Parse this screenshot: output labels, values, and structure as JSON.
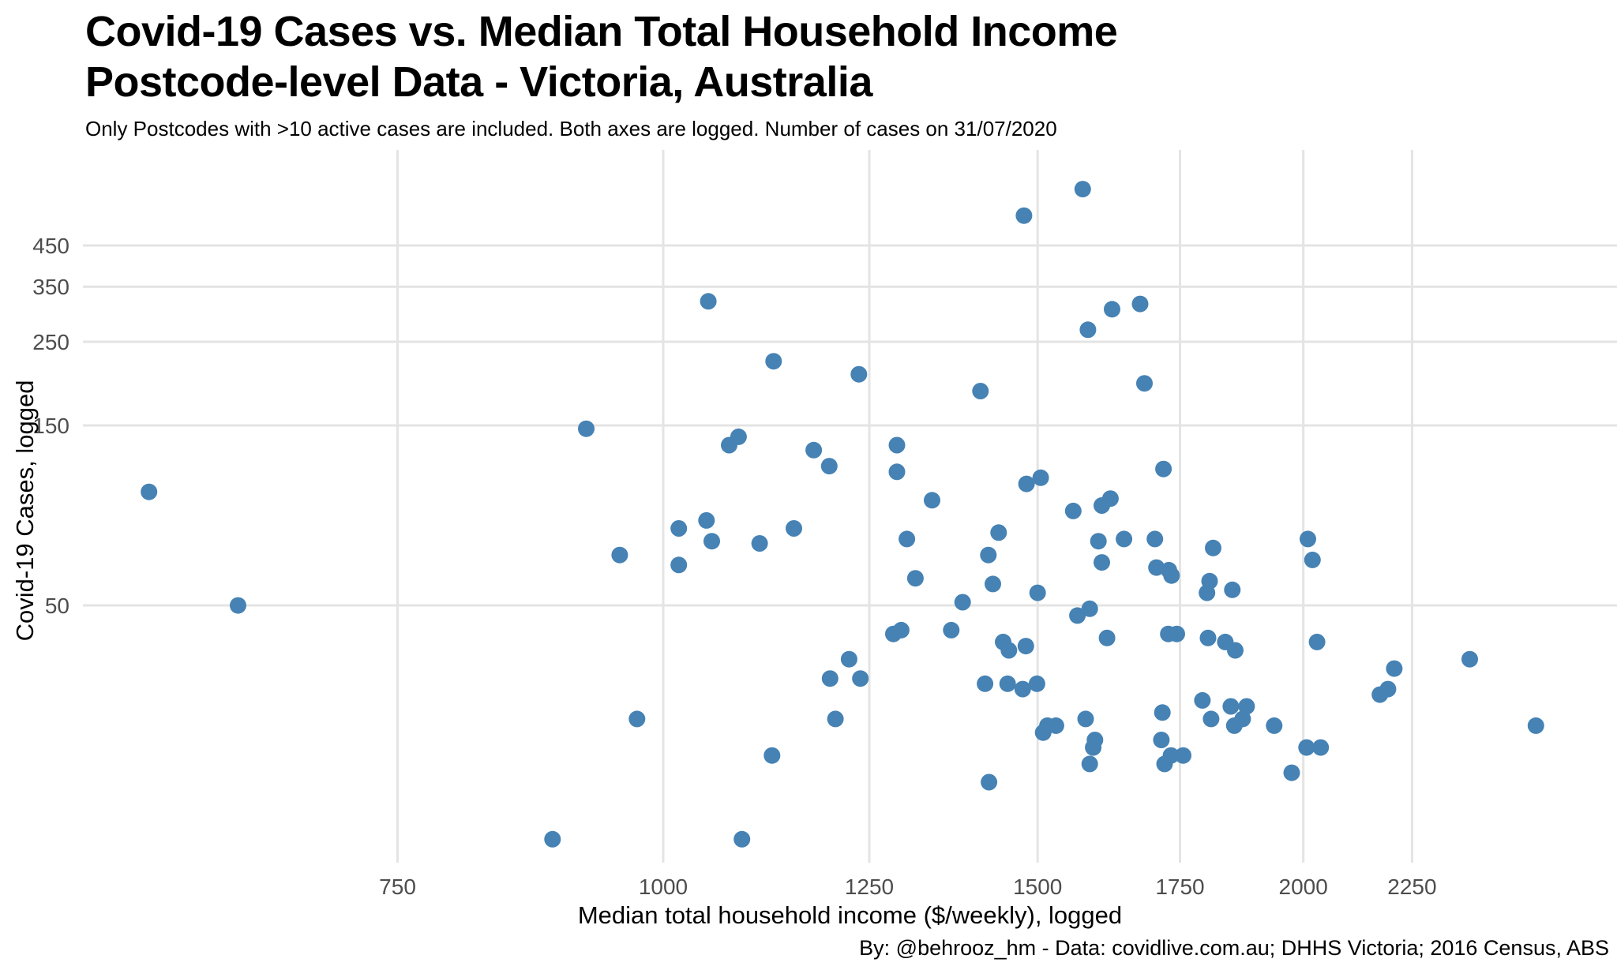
{
  "header": {
    "title": "Covid-19 Cases vs. Median Total Household Income\nPostcode-level Data - Victoria, Australia",
    "subtitle": "Only Postcodes with >10 active cases are included. Both axes are logged. Number of cases on 31/07/2020"
  },
  "chart_data": {
    "type": "scatter",
    "title": "Covid-19 Cases vs. Median Total Household Income Postcode-level Data - Victoria, Australia",
    "subtitle": "Only Postcodes with >10 active cases are included. Both axes are logged. Number of cases on 31/07/2020",
    "xlabel": "Median total household income ($/weekly), logged",
    "ylabel": "Covid-19 Cases, logged",
    "caption": "By: @behrooz_hm - Data: covidlive.com.au; DHHS Victoria; 2016 Census, ABS",
    "x_scale": "log",
    "y_scale": "log",
    "x_ticks": [
      750,
      1000,
      1250,
      1500,
      1750,
      2000,
      2250
    ],
    "y_ticks": [
      50,
      150,
      250,
      350,
      450
    ],
    "xlim": [
      533,
      2810
    ],
    "ylim": [
      10.4,
      806
    ],
    "grid": true,
    "legend": false,
    "point_color": "#4682B4",
    "grid_color": "#e4e4e4",
    "tick_label_color": "#4d4d4d",
    "points": [
      [
        573,
        100
      ],
      [
        631,
        50
      ],
      [
        1050,
        320
      ],
      [
        1127,
        222
      ],
      [
        1236,
        205
      ],
      [
        920,
        147
      ],
      [
        1085,
        140
      ],
      [
        1074,
        133
      ],
      [
        1177,
        129
      ],
      [
        1197,
        117
      ],
      [
        1288,
        133
      ],
      [
        1288,
        113
      ],
      [
        1575,
        635
      ],
      [
        1478,
        540
      ],
      [
        1626,
        305
      ],
      [
        1676,
        315
      ],
      [
        1584,
        269
      ],
      [
        1684,
        194
      ],
      [
        1410,
        185
      ],
      [
        1719,
        115
      ],
      [
        1505,
        109
      ],
      [
        1482,
        105
      ],
      [
        1338,
        95
      ],
      [
        1623,
        96
      ],
      [
        1608,
        92
      ],
      [
        1559,
        89
      ],
      [
        954,
        68
      ],
      [
        1017,
        80
      ],
      [
        1048,
        84
      ],
      [
        1054,
        74
      ],
      [
        1110,
        73
      ],
      [
        1152,
        80
      ],
      [
        1017,
        64
      ],
      [
        1283,
        42
      ],
      [
        1294,
        43
      ],
      [
        1223,
        36
      ],
      [
        1198,
        32
      ],
      [
        1238,
        32
      ],
      [
        1205,
        25
      ],
      [
        972,
        25
      ],
      [
        1125,
        20
      ],
      [
        887,
        12
      ],
      [
        1089,
        12
      ],
      [
        1438,
        78
      ],
      [
        1422,
        68
      ],
      [
        1302,
        75
      ],
      [
        1314,
        59
      ],
      [
        1429,
        57
      ],
      [
        1500,
        54
      ],
      [
        1383,
        51
      ],
      [
        1602,
        74
      ],
      [
        1608,
        65
      ],
      [
        1647,
        75
      ],
      [
        1703,
        75
      ],
      [
        1706,
        63
      ],
      [
        1729,
        62
      ],
      [
        1734,
        60
      ],
      [
        1814,
        71
      ],
      [
        1807,
        58
      ],
      [
        1802,
        54
      ],
      [
        1852,
        55
      ],
      [
        1587,
        49
      ],
      [
        1566,
        47
      ],
      [
        1366,
        43
      ],
      [
        1617,
        41
      ],
      [
        1728,
        42
      ],
      [
        1744,
        42
      ],
      [
        1804,
        41
      ],
      [
        1838,
        40
      ],
      [
        1858,
        38
      ],
      [
        1445,
        40
      ],
      [
        1454,
        38
      ],
      [
        1481,
        39
      ],
      [
        1417,
        31
      ],
      [
        1452,
        31
      ],
      [
        1476,
        30
      ],
      [
        1499,
        31
      ],
      [
        1793,
        28
      ],
      [
        1849,
        27
      ],
      [
        1881,
        27
      ],
      [
        1717,
        26
      ],
      [
        1810,
        25
      ],
      [
        1856,
        24
      ],
      [
        1873,
        25
      ],
      [
        1938,
        24
      ],
      [
        1516,
        24
      ],
      [
        1530,
        24
      ],
      [
        1509,
        23
      ],
      [
        1580,
        25
      ],
      [
        1596,
        22
      ],
      [
        1593,
        21
      ],
      [
        1715,
        22
      ],
      [
        1733,
        20
      ],
      [
        1721,
        19
      ],
      [
        1756,
        20
      ],
      [
        1587,
        19
      ],
      [
        1423,
        17
      ],
      [
        1975,
        18
      ],
      [
        2010,
        75
      ],
      [
        2020,
        66
      ],
      [
        2030,
        40
      ],
      [
        2207,
        34
      ],
      [
        2173,
        29
      ],
      [
        2192,
        30
      ],
      [
        2395,
        36
      ],
      [
        2573,
        24
      ],
      [
        2007,
        21
      ],
      [
        2038,
        21
      ]
    ]
  }
}
